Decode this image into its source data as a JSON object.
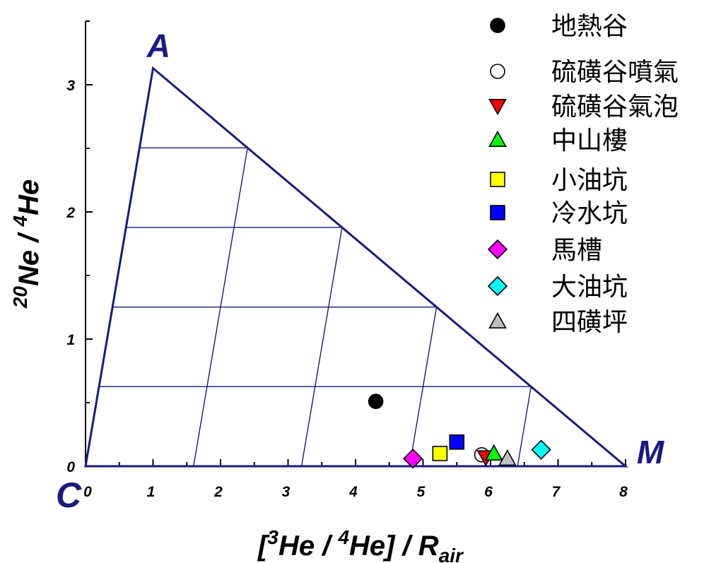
{
  "chart_data": {
    "type": "scatter",
    "xlabel": {
      "open": "[",
      "sup1": "3",
      "mid1": "He / ",
      "sup2": "4",
      "mid2": "He] / R",
      "sub": "air"
    },
    "ylabel": {
      "sup1": "20",
      "mid1": "Ne / ",
      "sup2": "4",
      "mid2": "He"
    },
    "xlim": [
      0,
      8
    ],
    "ylim": [
      0,
      3.5
    ],
    "x_ticks": [
      "0",
      "1",
      "2",
      "3",
      "4",
      "5",
      "6",
      "7",
      "8"
    ],
    "y_ticks": [
      "0",
      "1",
      "2",
      "3"
    ],
    "grid": false,
    "legend_position": "top-right",
    "ternary": {
      "vertices": [
        {
          "label": "A",
          "x": 1,
          "y": 3.13
        },
        {
          "label": "C",
          "x": 0,
          "y": 0
        },
        {
          "label": "M",
          "x": 8,
          "y": 0
        }
      ],
      "divisions": 5
    },
    "series": [
      {
        "name": "地熱谷",
        "marker": "circle",
        "fill": "#000000",
        "points": [
          {
            "x": 4.3,
            "y": 0.51
          }
        ]
      },
      {
        "name": "硫磺谷噴氣",
        "marker": "circle",
        "fill": "#ffffff",
        "points": [
          {
            "x": 5.87,
            "y": 0.09
          }
        ]
      },
      {
        "name": "硫磺谷氣泡",
        "marker": "triangle-down",
        "fill": "#ff0000",
        "points": [
          {
            "x": 5.93,
            "y": 0.07
          }
        ]
      },
      {
        "name": "中山樓",
        "marker": "triangle-up",
        "fill": "#00ff00",
        "points": [
          {
            "x": 6.05,
            "y": 0.1
          }
        ]
      },
      {
        "name": "小油坑",
        "marker": "square",
        "fill": "#ffff00",
        "points": [
          {
            "x": 5.25,
            "y": 0.1
          }
        ]
      },
      {
        "name": "冷水坑",
        "marker": "square",
        "fill": "#0000ff",
        "points": [
          {
            "x": 5.5,
            "y": 0.19
          }
        ]
      },
      {
        "name": "馬槽",
        "marker": "diamond",
        "fill": "#ff00ff",
        "points": [
          {
            "x": 4.85,
            "y": 0.06
          }
        ]
      },
      {
        "name": "大油坑",
        "marker": "diamond",
        "fill": "#00ffff",
        "points": [
          {
            "x": 6.75,
            "y": 0.13
          }
        ]
      },
      {
        "name": "四磺坪",
        "marker": "triangle-up",
        "fill": "#c0c0c0",
        "points": [
          {
            "x": 6.25,
            "y": 0.06
          }
        ]
      }
    ]
  },
  "colors": {
    "triangle": "#1a1a80",
    "axis": "#000000"
  }
}
